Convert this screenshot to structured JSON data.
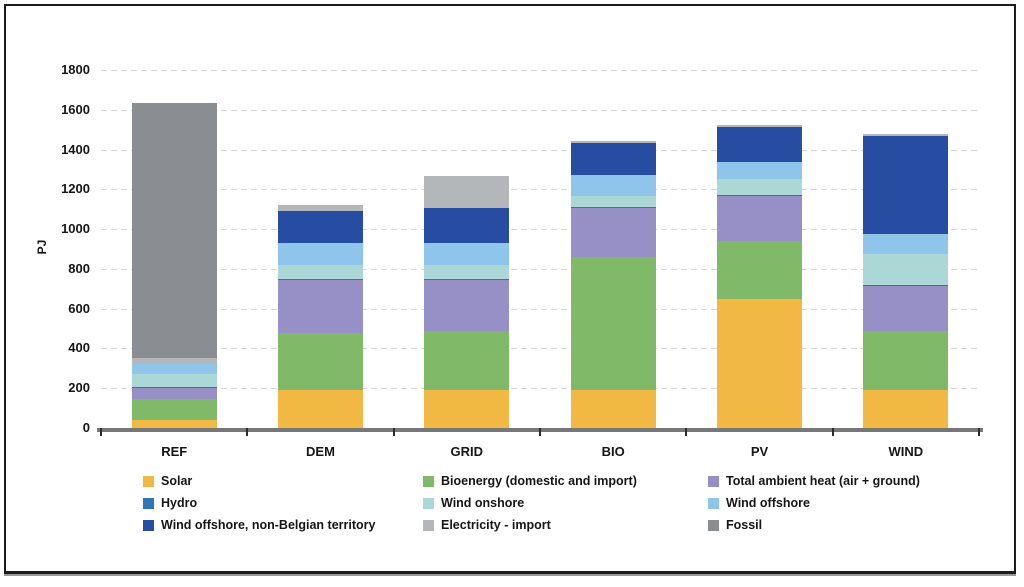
{
  "chart_data": {
    "type": "bar",
    "stacked": true,
    "title": "",
    "xlabel": "",
    "ylabel": "PJ",
    "ylim": [
      0,
      1800
    ],
    "yticks": [
      0,
      200,
      400,
      600,
      800,
      1000,
      1200,
      1400,
      1600,
      1800
    ],
    "grid": true,
    "legend_position": "bottom",
    "categories": [
      "REF",
      "DEM",
      "GRID",
      "BIO",
      "PV",
      "WIND"
    ],
    "series": [
      {
        "name": "Solar",
        "color": "#F1B844",
        "values": [
          40,
          190,
          190,
          190,
          650,
          190
        ]
      },
      {
        "name": "Bioenergy (domestic and import)",
        "color": "#80B968",
        "values": [
          105,
          290,
          300,
          670,
          290,
          300
        ]
      },
      {
        "name": "Total ambient heat (air + ground)",
        "color": "#9690C6",
        "values": [
          55,
          265,
          255,
          245,
          225,
          225
        ]
      },
      {
        "name": "Hydro",
        "color": "#2E74B8",
        "values": [
          5,
          5,
          5,
          5,
          5,
          5
        ]
      },
      {
        "name": "Wind onshore",
        "color": "#ABD7D6",
        "values": [
          65,
          70,
          70,
          55,
          80,
          155
        ]
      },
      {
        "name": "Wind offshore",
        "color": "#8FC4EB",
        "values": [
          50,
          110,
          110,
          105,
          85,
          100
        ]
      },
      {
        "name": "Wind offshore, non-Belgian territory",
        "color": "#264DA1",
        "values": [
          0,
          160,
          175,
          165,
          180,
          495
        ]
      },
      {
        "name": "Electricity - import",
        "color": "#B4B7BA",
        "values": [
          30,
          30,
          160,
          10,
          10,
          10
        ]
      },
      {
        "name": "Fossil",
        "color": "#8A8E92",
        "values": [
          1285,
          0,
          0,
          0,
          0,
          0
        ]
      }
    ]
  },
  "legend": {
    "columns": [
      [
        "Solar",
        "Hydro",
        "Wind offshore, non-Belgian territory"
      ],
      [
        "Bioenergy (domestic and import)",
        "Wind onshore",
        "Electricity - import"
      ],
      [
        "Total ambient heat (air + ground)",
        "Wind offshore",
        "Fossil"
      ]
    ]
  }
}
